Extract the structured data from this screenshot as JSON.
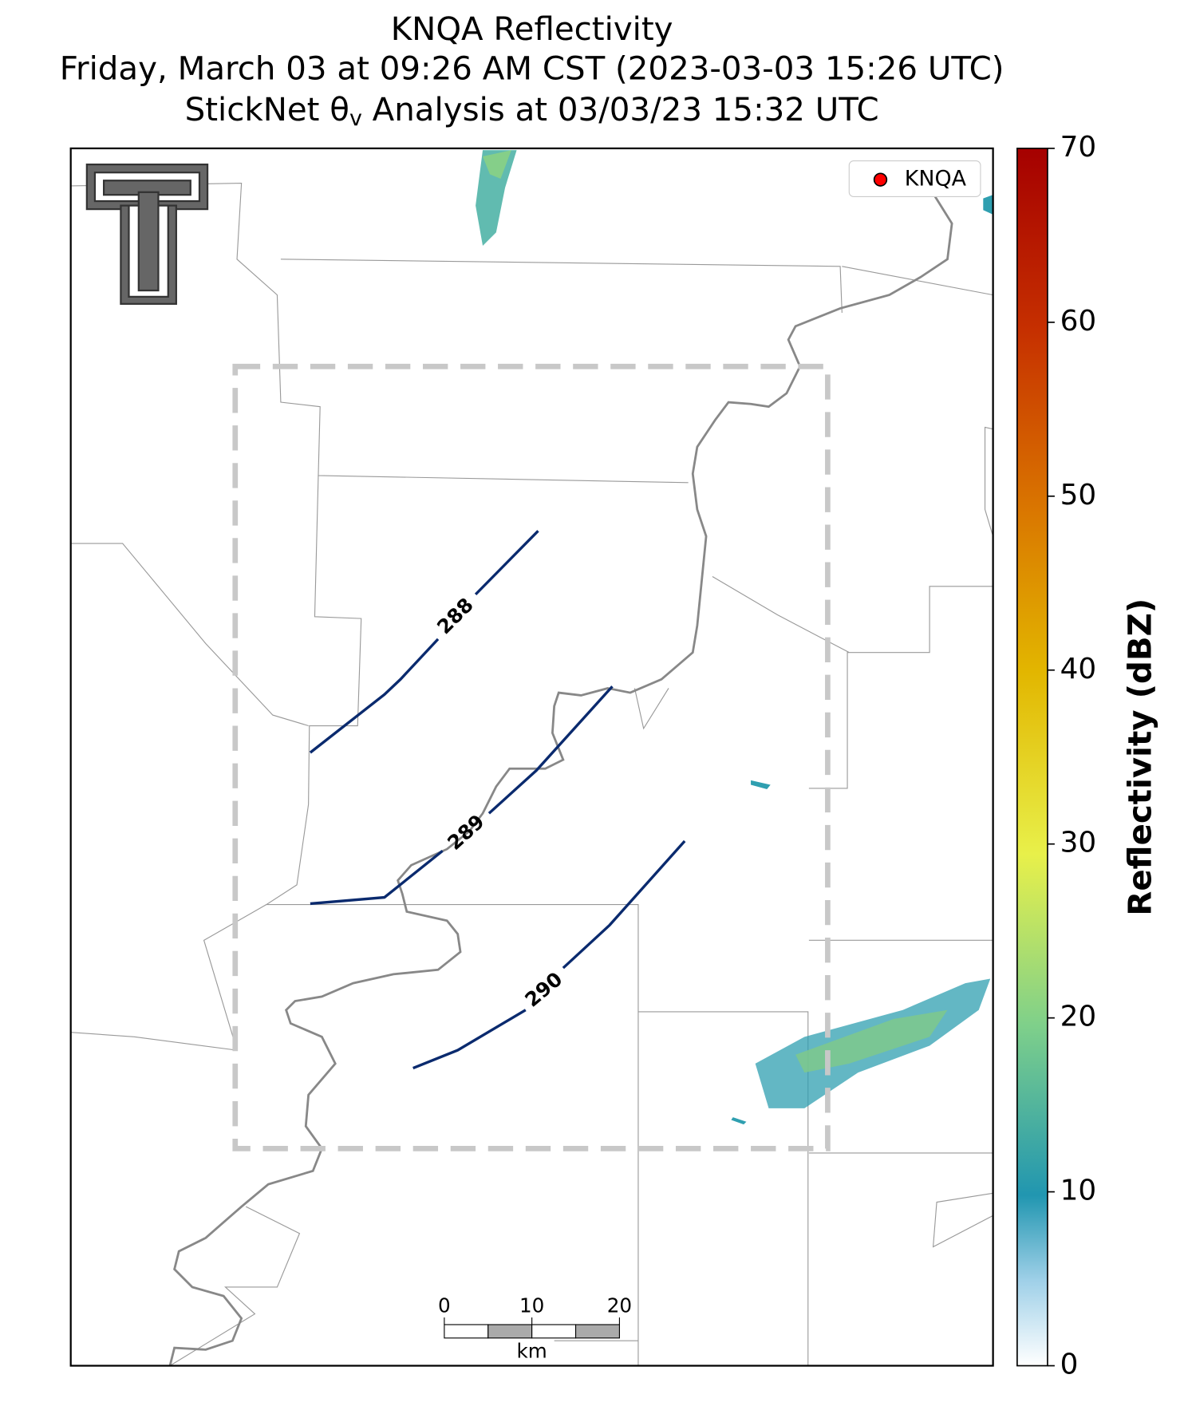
{
  "title": {
    "line1": "KNQA Reflectivity",
    "line2": "Friday, March 03 at 09:26 AM CST (2023-03-03 15:26 UTC)",
    "line3": {
      "prefix": "StickNet θ",
      "subscript": "v",
      "suffix": " Analysis at 03/03/23 15:32 UTC"
    }
  },
  "legend": {
    "label": "KNQA",
    "color": "#ff0000"
  },
  "contours": {
    "labels": [
      "288",
      "289",
      "290"
    ],
    "color": "#0a2a6e"
  },
  "scale_bar": {
    "ticks": [
      0,
      10,
      20
    ],
    "xlim": [
      0,
      20
    ],
    "unit": "km"
  },
  "colorbar": {
    "label": "Reflectivity (dBZ)",
    "ylim": [
      0,
      70
    ],
    "yticks": [
      0,
      10,
      20,
      30,
      40,
      50,
      60,
      70
    ]
  }
}
